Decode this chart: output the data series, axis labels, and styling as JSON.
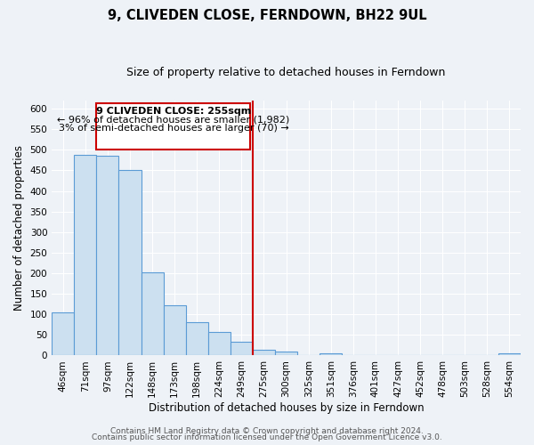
{
  "title": "9, CLIVEDEN CLOSE, FERNDOWN, BH22 9UL",
  "subtitle": "Size of property relative to detached houses in Ferndown",
  "xlabel": "Distribution of detached houses by size in Ferndown",
  "ylabel": "Number of detached properties",
  "bar_labels": [
    "46sqm",
    "71sqm",
    "97sqm",
    "122sqm",
    "148sqm",
    "173sqm",
    "198sqm",
    "224sqm",
    "249sqm",
    "275sqm",
    "300sqm",
    "325sqm",
    "351sqm",
    "376sqm",
    "401sqm",
    "427sqm",
    "452sqm",
    "478sqm",
    "503sqm",
    "528sqm",
    "554sqm"
  ],
  "bar_heights": [
    105,
    488,
    485,
    450,
    202,
    123,
    82,
    57,
    33,
    15,
    10,
    0,
    5,
    0,
    0,
    2,
    0,
    0,
    0,
    0,
    5
  ],
  "bar_color": "#cce0f0",
  "bar_edge_color": "#5b9bd5",
  "property_line_label": "9 CLIVEDEN CLOSE: 255sqm",
  "annotation_line1": "← 96% of detached houses are smaller (1,982)",
  "annotation_line2": "3% of semi-detached houses are larger (70) →",
  "annotation_box_color": "#ffffff",
  "annotation_box_edge": "#cc0000",
  "vline_color": "#cc0000",
  "ylim": [
    0,
    620
  ],
  "yticks": [
    0,
    50,
    100,
    150,
    200,
    250,
    300,
    350,
    400,
    450,
    500,
    550,
    600
  ],
  "footer1": "Contains HM Land Registry data © Crown copyright and database right 2024.",
  "footer2": "Contains public sector information licensed under the Open Government Licence v3.0.",
  "background_color": "#eef2f7",
  "grid_color": "#ffffff",
  "title_fontsize": 10.5,
  "subtitle_fontsize": 9,
  "axis_label_fontsize": 8.5,
  "tick_fontsize": 7.5,
  "annotation_fontsize": 8,
  "footer_fontsize": 6.5
}
